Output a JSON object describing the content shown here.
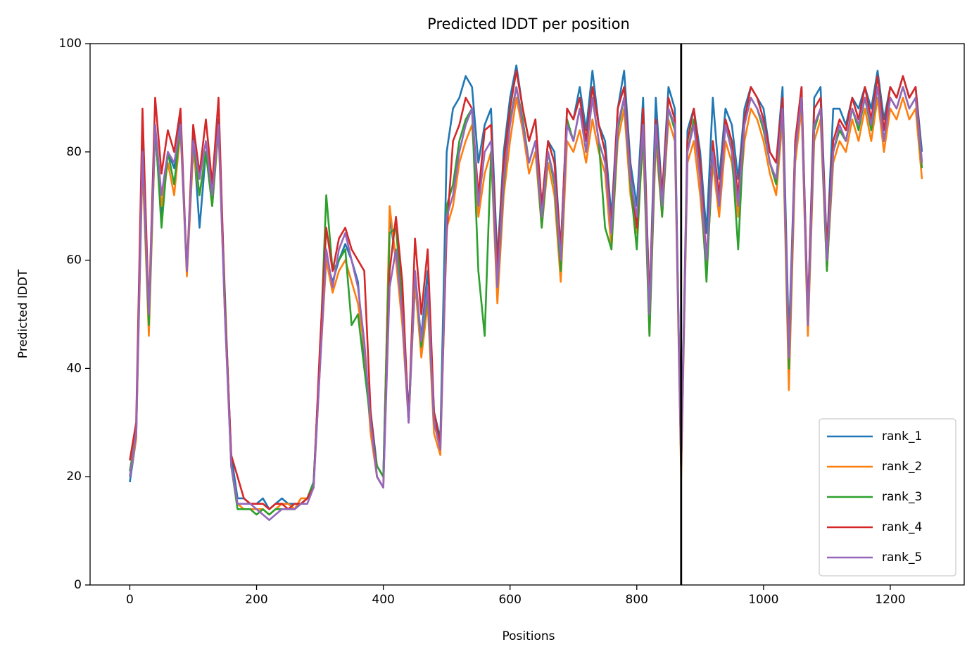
{
  "chart_data": {
    "type": "line",
    "title": "Predicted lDDT per position",
    "xlabel": "Positions",
    "ylabel": "Predicted lDDT",
    "x": [
      0,
      10,
      20,
      30,
      40,
      50,
      60,
      70,
      80,
      90,
      100,
      110,
      120,
      130,
      140,
      150,
      160,
      170,
      180,
      190,
      200,
      210,
      220,
      230,
      240,
      250,
      260,
      270,
      280,
      290,
      300,
      310,
      320,
      330,
      340,
      350,
      360,
      370,
      380,
      390,
      400,
      410,
      420,
      430,
      440,
      450,
      460,
      470,
      480,
      490,
      500,
      510,
      520,
      530,
      540,
      550,
      560,
      570,
      580,
      590,
      600,
      610,
      620,
      630,
      640,
      650,
      660,
      670,
      680,
      690,
      700,
      710,
      720,
      730,
      740,
      750,
      760,
      770,
      780,
      790,
      800,
      810,
      820,
      830,
      840,
      850,
      860,
      870,
      880,
      890,
      900,
      910,
      920,
      930,
      940,
      950,
      960,
      970,
      980,
      990,
      1000,
      1010,
      1020,
      1030,
      1040,
      1050,
      1060,
      1070,
      1080,
      1090,
      1100,
      1110,
      1120,
      1130,
      1140,
      1150,
      1160,
      1170,
      1180,
      1190,
      1200,
      1210,
      1220,
      1230,
      1240,
      1250
    ],
    "series": [
      {
        "name": "rank_1",
        "color": "#1f77b4",
        "values": [
          19,
          27,
          82,
          48,
          84,
          68,
          80,
          77,
          86,
          58,
          83,
          66,
          80,
          72,
          86,
          52,
          24,
          16,
          16,
          15,
          15,
          16,
          14,
          15,
          16,
          15,
          15,
          15,
          16,
          19,
          42,
          60,
          56,
          60,
          63,
          60,
          56,
          42,
          32,
          22,
          20,
          68,
          60,
          52,
          32,
          55,
          46,
          58,
          32,
          27,
          80,
          88,
          90,
          94,
          92,
          78,
          85,
          88,
          60,
          80,
          90,
          96,
          88,
          82,
          86,
          70,
          82,
          80,
          62,
          88,
          86,
          92,
          84,
          95,
          85,
          82,
          68,
          88,
          95,
          78,
          70,
          90,
          52,
          90,
          72,
          92,
          88,
          22,
          84,
          88,
          80,
          65,
          90,
          75,
          88,
          85,
          75,
          88,
          92,
          90,
          88,
          80,
          78,
          92,
          45,
          82,
          92,
          50,
          90,
          92,
          62,
          88,
          88,
          85,
          90,
          88,
          92,
          88,
          95,
          86,
          92,
          90,
          94,
          90,
          92,
          80
        ]
      },
      {
        "name": "rank_2",
        "color": "#ff7f0e",
        "values": [
          20,
          27,
          78,
          46,
          84,
          70,
          78,
          72,
          84,
          57,
          80,
          72,
          80,
          70,
          84,
          50,
          22,
          15,
          14,
          14,
          14,
          14,
          13,
          14,
          15,
          15,
          14,
          16,
          16,
          18,
          40,
          60,
          54,
          58,
          60,
          56,
          52,
          44,
          28,
          20,
          18,
          70,
          60,
          48,
          30,
          56,
          42,
          52,
          28,
          24,
          66,
          70,
          78,
          82,
          85,
          68,
          76,
          80,
          52,
          72,
          82,
          90,
          84,
          76,
          80,
          66,
          78,
          72,
          56,
          82,
          80,
          84,
          78,
          86,
          80,
          76,
          62,
          82,
          88,
          72,
          65,
          82,
          46,
          82,
          68,
          86,
          82,
          20,
          78,
          82,
          72,
          58,
          78,
          68,
          82,
          78,
          68,
          82,
          88,
          86,
          82,
          76,
          72,
          86,
          36,
          78,
          88,
          46,
          82,
          86,
          58,
          78,
          82,
          80,
          86,
          82,
          88,
          82,
          90,
          80,
          88,
          86,
          90,
          86,
          88,
          75
        ]
      },
      {
        "name": "rank_3",
        "color": "#2ca02c",
        "values": [
          21,
          28,
          80,
          48,
          85,
          66,
          80,
          74,
          85,
          58,
          82,
          72,
          80,
          70,
          85,
          54,
          22,
          14,
          14,
          14,
          13,
          14,
          13,
          14,
          14,
          14,
          14,
          15,
          16,
          19,
          42,
          72,
          58,
          60,
          62,
          48,
          50,
          40,
          30,
          22,
          20,
          65,
          66,
          52,
          30,
          58,
          44,
          54,
          30,
          26,
          70,
          74,
          82,
          86,
          88,
          58,
          46,
          80,
          55,
          74,
          86,
          92,
          86,
          78,
          82,
          66,
          80,
          74,
          58,
          86,
          82,
          88,
          80,
          90,
          82,
          66,
          62,
          84,
          90,
          74,
          62,
          84,
          46,
          84,
          68,
          88,
          84,
          22,
          80,
          86,
          76,
          56,
          80,
          70,
          86,
          80,
          62,
          86,
          90,
          88,
          84,
          78,
          74,
          88,
          40,
          80,
          90,
          48,
          84,
          88,
          58,
          80,
          84,
          82,
          88,
          84,
          90,
          84,
          92,
          82,
          90,
          88,
          92,
          88,
          90,
          77
        ]
      },
      {
        "name": "rank_4",
        "color": "#d62728",
        "values": [
          23,
          30,
          88,
          50,
          90,
          76,
          84,
          80,
          88,
          58,
          85,
          76,
          86,
          74,
          90,
          52,
          24,
          20,
          16,
          15,
          15,
          15,
          14,
          15,
          15,
          14,
          15,
          15,
          16,
          18,
          44,
          66,
          58,
          64,
          66,
          62,
          60,
          58,
          32,
          20,
          18,
          58,
          68,
          56,
          30,
          64,
          50,
          62,
          32,
          26,
          65,
          82,
          85,
          90,
          88,
          72,
          84,
          85,
          58,
          78,
          88,
          95,
          88,
          82,
          86,
          70,
          82,
          78,
          62,
          88,
          86,
          90,
          82,
          92,
          85,
          80,
          66,
          88,
          92,
          76,
          66,
          88,
          52,
          86,
          72,
          90,
          86,
          22,
          82,
          88,
          78,
          60,
          82,
          72,
          86,
          82,
          72,
          86,
          92,
          90,
          86,
          80,
          78,
          90,
          42,
          82,
          92,
          50,
          88,
          90,
          62,
          82,
          86,
          84,
          90,
          86,
          92,
          86,
          94,
          84,
          92,
          90,
          94,
          90,
          92,
          78
        ]
      },
      {
        "name": "rank_5",
        "color": "#9467bd",
        "values": [
          20,
          28,
          80,
          50,
          85,
          72,
          80,
          78,
          85,
          58,
          82,
          75,
          82,
          72,
          85,
          50,
          22,
          15,
          15,
          15,
          14,
          13,
          12,
          13,
          14,
          14,
          14,
          15,
          15,
          18,
          40,
          62,
          55,
          62,
          65,
          60,
          55,
          45,
          30,
          20,
          18,
          55,
          62,
          50,
          30,
          58,
          45,
          55,
          30,
          25,
          68,
          72,
          80,
          85,
          88,
          70,
          80,
          82,
          55,
          75,
          85,
          92,
          85,
          78,
          82,
          68,
          80,
          75,
          60,
          85,
          82,
          88,
          80,
          90,
          82,
          78,
          65,
          85,
          90,
          75,
          68,
          85,
          50,
          85,
          70,
          88,
          85,
          22,
          80,
          85,
          75,
          60,
          80,
          70,
          85,
          80,
          70,
          85,
          90,
          88,
          85,
          78,
          75,
          88,
          42,
          80,
          90,
          48,
          85,
          88,
          60,
          80,
          85,
          82,
          88,
          85,
          90,
          85,
          92,
          82,
          90,
          88,
          92,
          88,
          90,
          78
        ]
      }
    ],
    "vline": 870,
    "vline_color": "#000000",
    "xlim": [
      -62.7,
      1316.7
    ],
    "xticks": [
      0,
      200,
      400,
      600,
      800,
      1000,
      1200
    ],
    "ylim": [
      0,
      100
    ],
    "yticks": [
      0,
      20,
      40,
      60,
      80,
      100
    ],
    "grid": false,
    "legend": "lower right"
  }
}
